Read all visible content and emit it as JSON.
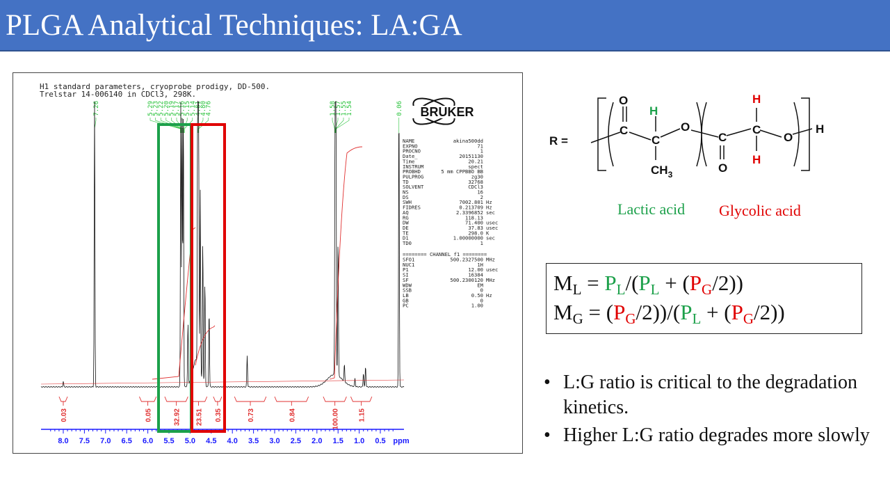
{
  "slide": {
    "title": "PLGA Analytical Techniques: LA:GA"
  },
  "nmr": {
    "header_line1": "H1 standard parameters, cryoprobe prodigy, DD-500.",
    "header_line2": "Trelstar 14-006140 in CDCl3, 298K.",
    "logo": "BRUKER",
    "peak_labels_left": [
      "7.26"
    ],
    "peak_labels_mid": [
      "5.29",
      "5.23",
      "5.22",
      "5.20",
      "5.19",
      "5.17",
      "5.16",
      "5.15",
      "5.14",
      "4.81",
      "4.80",
      "4.76"
    ],
    "peak_labels_right": [
      "1.58",
      "1.57",
      "1.55",
      "1.54"
    ],
    "peak_label_far": "0.06",
    "params": [
      [
        "NAME",
        "akina500dd",
        ""
      ],
      [
        "EXPNO",
        "71",
        ""
      ],
      [
        "PROCNO",
        "1",
        ""
      ],
      [
        "Date_",
        "20151130",
        ""
      ],
      [
        "Time",
        "20.21",
        ""
      ],
      [
        "INSTRUM",
        "spect",
        ""
      ],
      [
        "PROBHD",
        "5 mm CPPBBO BB",
        ""
      ],
      [
        "PULPROG",
        "zg30",
        ""
      ],
      [
        "TD",
        "32768",
        ""
      ],
      [
        "SOLVENT",
        "CDCl3",
        ""
      ],
      [
        "NS",
        "16",
        ""
      ],
      [
        "DS",
        "2",
        ""
      ],
      [
        "SWH",
        "7002.801",
        "Hz"
      ],
      [
        "FIDRES",
        "0.213709",
        "Hz"
      ],
      [
        "AQ",
        "2.3396852",
        "sec"
      ],
      [
        "RG",
        "118.13",
        ""
      ],
      [
        "DW",
        "71.400",
        "usec"
      ],
      [
        "DE",
        "37.83",
        "usec"
      ],
      [
        "TE",
        "298.0",
        "K"
      ],
      [
        "D1",
        "1.00000000",
        "sec"
      ],
      [
        "TD0",
        "1",
        ""
      ]
    ],
    "channel_header": "======== CHANNEL f1 ========",
    "channel_params": [
      [
        "SFO1",
        "500.2327500",
        "MHz"
      ],
      [
        "NUC1",
        "1H",
        ""
      ],
      [
        "P1",
        "12.00",
        "usec"
      ],
      [
        "SI",
        "16384",
        ""
      ],
      [
        "SF",
        "500.2300120",
        "MHz"
      ],
      [
        "WDW",
        "EM",
        ""
      ],
      [
        "SSB",
        "0",
        ""
      ],
      [
        "LB",
        "0.50",
        "Hz"
      ],
      [
        "GB",
        "0",
        ""
      ],
      [
        "PC",
        "1.00",
        ""
      ]
    ],
    "integrals": [
      "0.03",
      "0.05",
      "32.92",
      "23.51",
      "0.35",
      "0.73",
      "0.84",
      "100.00",
      "1.15"
    ],
    "axis_ticks": [
      "8.0",
      "7.5",
      "7.0",
      "6.5",
      "6.0",
      "5.5",
      "5.0",
      "4.5",
      "4.0",
      "3.5",
      "3.0",
      "2.5",
      "2.0",
      "1.5",
      "1.0",
      "0.5"
    ],
    "axis_unit": "ppm",
    "colors": {
      "spectrum": "#111111",
      "label": "#27c23a",
      "integral": "#e03030",
      "axis": "#1a1aff",
      "green_box": "#1ca04a",
      "red_box": "#e00000"
    }
  },
  "structure": {
    "r_label": "R  =",
    "atoms": {
      "C": "C",
      "O": "O",
      "H": "H",
      "CH3": "CH",
      "three": "3"
    },
    "lactic_label": "Lactic acid",
    "glycolic_label": "Glycolic acid"
  },
  "formula": {
    "ml_M": "M",
    "ml_sub": "L",
    "eq": " = ",
    "P": "P",
    "L": "L",
    "G": "G",
    "part_open": "/(",
    "plus_open": " + (",
    "div2_close": "/2))",
    "mg_M": "M",
    "mg_sub": "G",
    "mg_open": " = (",
    "div2_mid": "/2))/(",
    "close": "/2))"
  },
  "bullets": [
    "L:G ratio is critical to the degradation kinetics.",
    "Higher L:G ratio degrades more slowly"
  ],
  "bullet_char": "•"
}
